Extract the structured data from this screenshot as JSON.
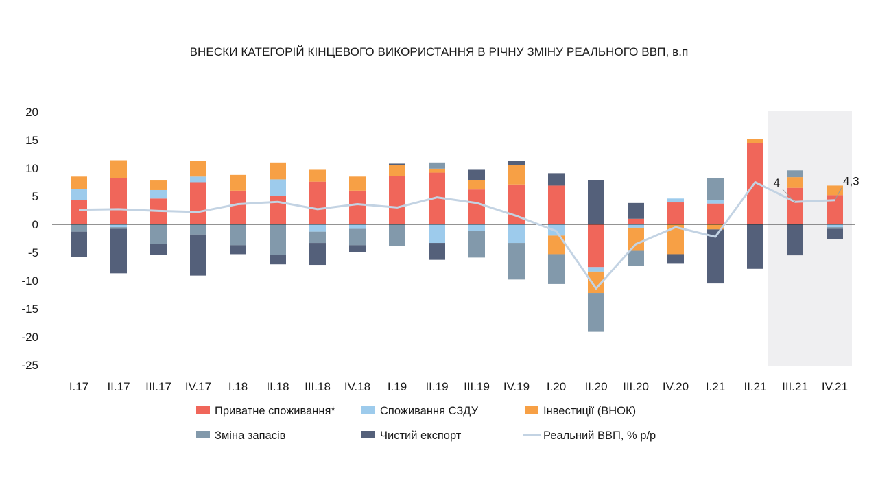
{
  "chart_data": {
    "type": "bar",
    "title": "ВНЕСКИ КАТЕГОРІЙ КІНЦЕВОГО ВИКОРИСТАННЯ В РІЧНУ ЗМІНУ РЕАЛЬНОГО ВВП, в.п",
    "xlabel": "",
    "ylabel": "",
    "ylim": [
      -25,
      20
    ],
    "yticks": [
      20,
      15,
      10,
      5,
      0,
      -5,
      -10,
      -15,
      -20,
      -25
    ],
    "grid": false,
    "stacked": true,
    "forecast_shading_categories": [
      "III.21",
      "IV.21"
    ],
    "categories": [
      "I.17",
      "II.17",
      "III.17",
      "IV.17",
      "I.18",
      "II.18",
      "III.18",
      "IV.18",
      "I.19",
      "II.19",
      "III.19",
      "IV.19",
      "I.20",
      "II.20",
      "III.20",
      "IV.20",
      "I.21",
      "II.21",
      "III.21",
      "IV.21"
    ],
    "series": [
      {
        "name": "Приватне споживання*",
        "type": "bar",
        "color": "#f0665a",
        "values": [
          4.3,
          8.2,
          4.6,
          7.5,
          6.0,
          5.1,
          7.6,
          6.0,
          8.6,
          9.2,
          6.2,
          7.1,
          6.9,
          -7.6,
          1.0,
          3.9,
          3.7,
          14.5,
          6.5,
          5.2
        ]
      },
      {
        "name": "Споживання СЗДУ",
        "type": "bar",
        "color": "#9dcbec",
        "values": [
          2.0,
          -0.5,
          1.5,
          1.0,
          0.0,
          2.9,
          -1.3,
          -0.8,
          0.0,
          -3.3,
          -1.2,
          -3.3,
          -2.0,
          -0.8,
          -0.6,
          0.7,
          0.6,
          0.0,
          0.0,
          -0.5
        ]
      },
      {
        "name": "Інвестиції (ВНОК)",
        "type": "bar",
        "color": "#f7a045",
        "values": [
          2.2,
          3.2,
          1.7,
          2.8,
          2.8,
          3.0,
          2.1,
          2.5,
          2.0,
          0.7,
          1.7,
          3.5,
          -3.3,
          -3.8,
          -4.1,
          -5.3,
          -0.9,
          0.7,
          1.9,
          1.7
        ]
      },
      {
        "name": "Зміна запасів",
        "type": "bar",
        "color": "#8299ab",
        "values": [
          -1.3,
          -0.3,
          -3.5,
          -1.8,
          -3.7,
          -5.4,
          -2.0,
          -2.9,
          -3.9,
          1.1,
          -4.7,
          -6.5,
          -5.3,
          -6.9,
          -2.7,
          0.0,
          3.9,
          0.0,
          1.2,
          -0.3
        ]
      },
      {
        "name": "Чистий експорт",
        "type": "bar",
        "color": "#54607a",
        "values": [
          -4.5,
          -7.9,
          -1.9,
          -7.3,
          -1.6,
          -1.7,
          -3.9,
          -1.3,
          0.2,
          -3.0,
          1.8,
          0.7,
          2.2,
          7.9,
          2.8,
          -1.7,
          -9.6,
          -7.9,
          -5.5,
          -1.8
        ]
      },
      {
        "name": "Реальний ВВП, % р/р",
        "type": "line",
        "color": "#c3d3e3",
        "values": [
          2.6,
          2.7,
          2.4,
          2.2,
          3.6,
          4.0,
          2.7,
          3.6,
          3.0,
          4.8,
          3.8,
          1.5,
          -1.2,
          -11.4,
          -3.5,
          -0.5,
          -2.2,
          7.5,
          4.0,
          4.3
        ]
      }
    ],
    "data_labels": [
      {
        "category": "III.21",
        "series": "Реальний ВВП, % р/р",
        "text": "4"
      },
      {
        "category": "IV.21",
        "series": "Реальний ВВП, % р/р",
        "text": "4,3"
      }
    ],
    "legend": {
      "placement": "bottom",
      "rows": [
        [
          "Приватне споживання*",
          "Споживання СЗДУ",
          "Інвестиції (ВНОК)"
        ],
        [
          "Зміна запасів",
          "Чистий експорт",
          "Реальний ВВП, % р/р"
        ]
      ]
    }
  }
}
